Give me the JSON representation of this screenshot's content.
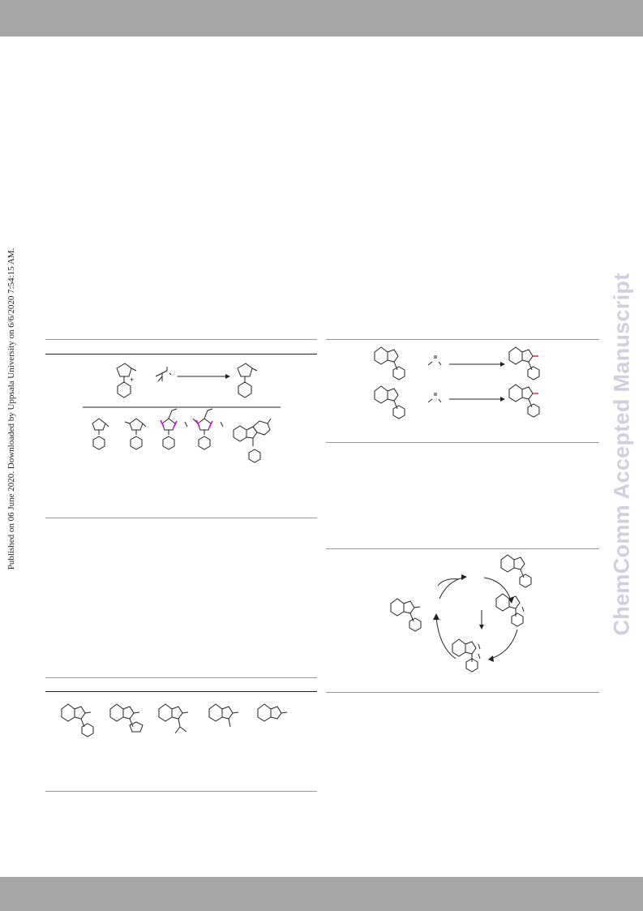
{
  "page": {
    "side_note": "Published on 06 June 2020. Downloaded by Uppsala University on 6/6/2020 7:54:15 AM.",
    "watermark": "ChemComm Accepted Manuscript"
  },
  "scheme_top_left": {
    "plus_sign": "+"
  },
  "colors": {
    "band": "#a6a6a6",
    "watermark": "#cfcfe0",
    "highlight_bond": "#d00000",
    "site_arrow": "#e000e0"
  },
  "icons": [
    "pyrrole-icon",
    "pyrimidine-icon",
    "indole-icon",
    "carbazole-icon",
    "reaction-arrow-icon",
    "catalytic-cycle-arrow-icon"
  ]
}
